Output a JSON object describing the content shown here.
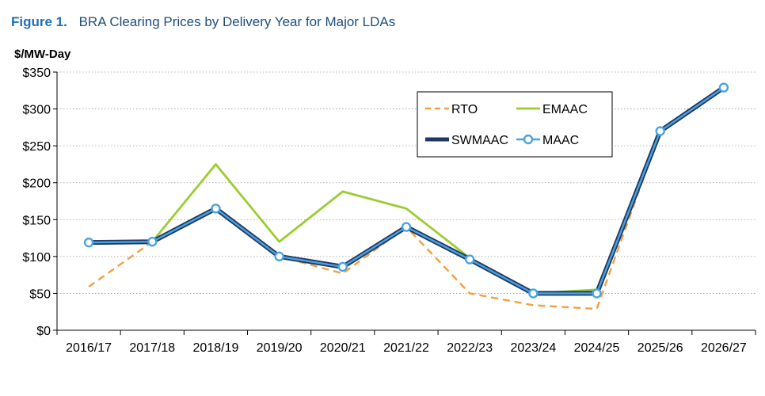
{
  "figure": {
    "number": "Figure 1.",
    "title": "BRA Clearing Prices by Delivery Year for Major LDAs"
  },
  "chart_data": {
    "type": "line",
    "title": "BRA Clearing Prices by Delivery Year for Major LDAs",
    "ylabel": "$/MW-Day",
    "xlabel": "",
    "ylim": [
      0,
      350
    ],
    "yticks": [
      0,
      50,
      100,
      150,
      200,
      250,
      300,
      350
    ],
    "ytick_labels": [
      "$0",
      "$50",
      "$100",
      "$150",
      "$200",
      "$250",
      "$300",
      "$350"
    ],
    "categories": [
      "2016/17",
      "2017/18",
      "2018/19",
      "2019/20",
      "2020/21",
      "2021/22",
      "2022/23",
      "2023/24",
      "2024/25",
      "2025/26",
      "2026/27"
    ],
    "grid": "horizontal dotted",
    "legend_position": "top-right",
    "series": [
      {
        "name": "RTO",
        "style": "dashed",
        "color": "#f0a040",
        "values": [
          59,
          120,
          165,
          100,
          77,
          140,
          50,
          34,
          29,
          270,
          329
        ]
      },
      {
        "name": "EMAAC",
        "style": "solid",
        "color": "#9acd32",
        "values": [
          119,
          120,
          225,
          120,
          188,
          165,
          98,
          50,
          55,
          270,
          329
        ]
      },
      {
        "name": "SWMAAC",
        "style": "solid-thick",
        "color": "#1f3864",
        "values": [
          119,
          120,
          165,
          100,
          86,
          140,
          96,
          50,
          50,
          270,
          329
        ]
      },
      {
        "name": "MAAC",
        "style": "solid-markers",
        "color": "#4aa3df",
        "values": [
          119,
          120,
          165,
          100,
          86,
          140,
          96,
          50,
          50,
          270,
          329
        ]
      }
    ]
  }
}
